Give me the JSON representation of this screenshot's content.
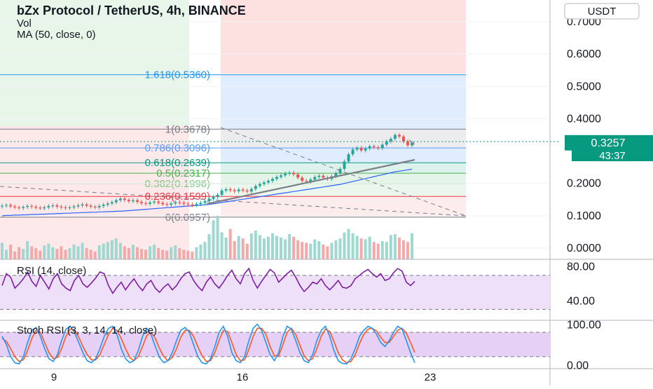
{
  "header": {
    "title": "bZx Protocol / TetherUS, 4h, BINANCE",
    "vol_label": "Vol",
    "ma_label": "MA (50, close, 0)",
    "currency_button": "USDT"
  },
  "price_axis": {
    "ticks": [
      "0.7000",
      "0.6000",
      "0.5000",
      "0.4000",
      "0.2000",
      "0.1000",
      "0.0000"
    ],
    "tick_values": [
      0.7,
      0.6,
      0.5,
      0.4,
      0.2,
      0.1,
      0.0
    ],
    "current_price": "0.3257",
    "countdown": "43:37"
  },
  "rsi_panel": {
    "label": "RSI (14, close)",
    "ticks": [
      "80.00",
      "40.00"
    ],
    "tick_values": [
      80,
      40
    ],
    "band": [
      30,
      70
    ]
  },
  "stoch_panel": {
    "label": "Stoch RSI (3, 3, 14, 14, close)",
    "ticks": [
      "100.00",
      "0.00"
    ],
    "tick_values": [
      100,
      0
    ],
    "band": [
      20,
      80
    ]
  },
  "time_axis": {
    "labels": [
      "9",
      "16",
      "23"
    ]
  },
  "fib_levels": [
    {
      "label": "1.618(0.5360)",
      "value": 0.536,
      "color": "#2196f3"
    },
    {
      "label": "1(0.3678)",
      "value": 0.3678,
      "color": "#787b86"
    },
    {
      "label": "0.786(0.3096)",
      "value": 0.3096,
      "color": "#5b9cf6"
    },
    {
      "label": "0.618(0.2639)",
      "value": 0.2639,
      "color": "#089981"
    },
    {
      "label": "0.5(0.2317)",
      "value": 0.2317,
      "color": "#4caf50"
    },
    {
      "label": "0.382(0.1996)",
      "value": 0.1996,
      "color": "#81c784"
    },
    {
      "label": "0.236(0.1599)",
      "value": 0.1599,
      "color": "#f23645"
    },
    {
      "label": "0(0.0957)",
      "value": 0.0957,
      "color": "#787b86"
    }
  ],
  "colors": {
    "up": "#26a69a",
    "down": "#ef5350",
    "ma": "#2962ff",
    "rsi": "#7e1fa1",
    "stoch_k": "#2196f3",
    "stoch_d": "#ff5722",
    "price_badge": "#089981"
  },
  "chart_data": [
    {
      "type": "candlestick",
      "title": "bZx Protocol / TetherUS, 4h, BINANCE",
      "ylim": [
        0,
        0.74
      ],
      "close": [
        0.131,
        0.133,
        0.129,
        0.126,
        0.124,
        0.127,
        0.13,
        0.128,
        0.125,
        0.123,
        0.126,
        0.13,
        0.132,
        0.128,
        0.126,
        0.124,
        0.126,
        0.129,
        0.132,
        0.135,
        0.131,
        0.128,
        0.126,
        0.13,
        0.134,
        0.138,
        0.142,
        0.148,
        0.153,
        0.149,
        0.145,
        0.148,
        0.143,
        0.139,
        0.137,
        0.141,
        0.144,
        0.14,
        0.136,
        0.134,
        0.138,
        0.142,
        0.14,
        0.137,
        0.135,
        0.133,
        0.136,
        0.14,
        0.145,
        0.152,
        0.158,
        0.165,
        0.178,
        0.182,
        0.179,
        0.176,
        0.181,
        0.178,
        0.175,
        0.183,
        0.192,
        0.198,
        0.203,
        0.208,
        0.214,
        0.22,
        0.225,
        0.23,
        0.233,
        0.228,
        0.218,
        0.208,
        0.206,
        0.212,
        0.22,
        0.224,
        0.218,
        0.214,
        0.222,
        0.232,
        0.245,
        0.268,
        0.29,
        0.305,
        0.31,
        0.302,
        0.308,
        0.315,
        0.312,
        0.309,
        0.32,
        0.33,
        0.338,
        0.35,
        0.345,
        0.33,
        0.318,
        0.3257
      ],
      "volume": [
        38,
        22,
        34,
        18,
        28,
        24,
        42,
        30,
        26,
        20,
        32,
        36,
        28,
        24,
        30,
        22,
        26,
        34,
        30,
        38,
        26,
        22,
        18,
        32,
        36,
        40,
        44,
        48,
        38,
        30,
        26,
        34,
        28,
        24,
        22,
        30,
        34,
        26,
        22,
        20,
        28,
        32,
        26,
        22,
        20,
        18,
        28,
        34,
        40,
        58,
        90,
        100,
        62,
        50,
        70,
        42,
        54,
        48,
        36,
        60,
        66,
        56,
        48,
        52,
        60,
        54,
        50,
        46,
        58,
        52,
        44,
        40,
        38,
        36,
        46,
        42,
        34,
        30,
        38,
        44,
        48,
        62,
        70,
        60,
        54,
        48,
        46,
        52,
        40,
        36,
        42,
        40,
        56,
        58,
        50,
        44,
        40,
        60
      ],
      "ma50": [
        0.1,
        0.101,
        0.101,
        0.102,
        0.102,
        0.103,
        0.103,
        0.104,
        0.104,
        0.105,
        0.105,
        0.106,
        0.106,
        0.107,
        0.107,
        0.108,
        0.108,
        0.109,
        0.109,
        0.11,
        0.11,
        0.111,
        0.111,
        0.112,
        0.112,
        0.113,
        0.113,
        0.114,
        0.114,
        0.115,
        0.116,
        0.117,
        0.118,
        0.119,
        0.12,
        0.121,
        0.122,
        0.123,
        0.124,
        0.125,
        0.126,
        0.127,
        0.128,
        0.129,
        0.13,
        0.131,
        0.132,
        0.133,
        0.134,
        0.135,
        0.137,
        0.139,
        0.141,
        0.143,
        0.145,
        0.147,
        0.149,
        0.151,
        0.153,
        0.155,
        0.157,
        0.159,
        0.161,
        0.163,
        0.165,
        0.167,
        0.169,
        0.171,
        0.173,
        0.175,
        0.177,
        0.179,
        0.181,
        0.183,
        0.185,
        0.187,
        0.189,
        0.191,
        0.193,
        0.195,
        0.197,
        0.2,
        0.203,
        0.206,
        0.209,
        0.212,
        0.215,
        0.218,
        0.221,
        0.224,
        0.227,
        0.23,
        0.233,
        0.236,
        0.238,
        0.24,
        0.242,
        0.244
      ]
    },
    {
      "type": "line",
      "title": "RSI (14, close)",
      "ylim": [
        18,
        88
      ],
      "values": [
        58,
        72,
        68,
        55,
        60,
        66,
        74,
        63,
        57,
        70,
        62,
        54,
        66,
        72,
        60,
        55,
        52,
        64,
        70,
        60,
        56,
        61,
        67,
        74,
        72,
        58,
        49,
        56,
        62,
        53,
        60,
        66,
        58,
        52,
        60,
        64,
        55,
        50,
        56,
        60,
        53,
        58,
        66,
        72,
        74,
        64,
        57,
        52,
        62,
        68,
        60,
        55,
        62,
        70,
        76,
        66,
        60,
        72,
        78,
        64,
        55,
        63,
        70,
        77,
        73,
        62,
        67,
        72,
        76,
        68,
        58,
        51,
        56,
        62,
        60,
        66,
        58,
        53,
        58,
        64,
        56,
        55,
        58,
        66,
        70,
        74,
        77,
        72,
        68,
        72,
        64,
        66,
        73,
        78,
        75,
        62,
        58,
        63
      ]
    },
    {
      "type": "line",
      "title": "Stoch RSI (3, 3, 14, 14, close)",
      "ylim": [
        -8,
        108
      ],
      "series": [
        {
          "values": [
            70,
            50,
            20,
            5,
            2,
            20,
            55,
            85,
            92,
            70,
            40,
            15,
            8,
            25,
            60,
            88,
            95,
            80,
            55,
            30,
            10,
            5,
            15,
            40,
            70,
            90,
            95,
            75,
            40,
            15,
            5,
            10,
            35,
            70,
            90,
            75,
            45,
            18,
            5,
            10,
            30,
            60,
            85,
            92,
            80,
            50,
            20,
            5,
            2,
            15,
            45,
            80,
            95,
            70,
            30,
            10,
            5,
            20,
            60,
            90,
            100,
            85,
            55,
            25,
            10,
            30,
            70,
            95,
            88,
            60,
            30,
            10,
            5,
            25,
            60,
            85,
            95,
            70,
            35,
            10,
            3,
            2,
            15,
            40,
            70,
            85,
            95,
            90,
            75,
            55,
            45,
            60,
            80,
            95,
            88,
            60,
            30,
            5
          ]
        },
        {
          "values": [
            65,
            58,
            40,
            20,
            8,
            12,
            35,
            65,
            85,
            80,
            55,
            30,
            15,
            18,
            40,
            70,
            88,
            85,
            68,
            45,
            25,
            12,
            12,
            25,
            50,
            75,
            90,
            85,
            65,
            40,
            18,
            10,
            20,
            45,
            72,
            80,
            65,
            40,
            20,
            10,
            18,
            40,
            68,
            85,
            85,
            70,
            45,
            22,
            8,
            10,
            30,
            60,
            85,
            82,
            55,
            25,
            10,
            12,
            38,
            70,
            90,
            90,
            75,
            45,
            22,
            22,
            50,
            80,
            90,
            75,
            48,
            22,
            10,
            15,
            40,
            70,
            88,
            82,
            58,
            30,
            12,
            5,
            8,
            25,
            52,
            75,
            88,
            90,
            83,
            68,
            55,
            55,
            70,
            85,
            90,
            78,
            55,
            30
          ]
        }
      ]
    }
  ]
}
